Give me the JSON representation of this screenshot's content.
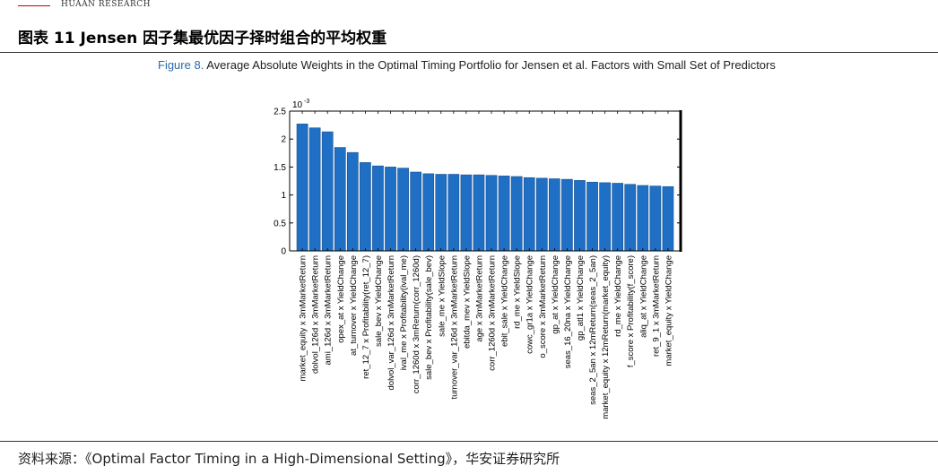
{
  "header": {
    "brand": "HUAAN RESEARCH",
    "figure_title": "图表 11 Jensen 因子集最优因子择时组合的平均权重"
  },
  "caption": {
    "label": "Figure 8.",
    "text": "Average Absolute Weights in the Optimal Timing Portfolio for Jensen et al. Factors with Small Set of Predictors"
  },
  "footer": {
    "source_label": "资料来源：",
    "source_text": "《Optimal Factor Timing in a High-Dimensional Setting》，华安证券研究所"
  },
  "colors": {
    "bar": "#1f6fc5",
    "bar_edge": "#1a4f8f",
    "axis": "#000000",
    "accent_line": "#c00000"
  },
  "chart_data": {
    "type": "bar",
    "title": "",
    "xlabel": "",
    "ylabel": "",
    "y_exponent_label": "10",
    "y_exponent_power": "-3",
    "ylim": [
      0,
      2.5
    ],
    "yticks": [
      0,
      0.5,
      1,
      1.5,
      2,
      2.5
    ],
    "ytick_labels": [
      "0",
      "0.5",
      "1",
      "1.5",
      "2",
      "2.5"
    ],
    "categories": [
      "market_equity x 3mMarketReturn",
      "dolvol_126d x 3mMarketReturn",
      "ami_126d x 3mMarketReturn",
      "opex_at x YieldChange",
      "at_turnover x YieldChange",
      "ret_12_7 x Profitability(ret_12_7)",
      "sale_bev x YieldChange",
      "dolvol_var_126d x 3mMarketReturn",
      "ival_me x Profitability(ival_me)",
      "corr_1260d x 3mReturn(corr_1260d)",
      "sale_bev x Profitability(sale_bev)",
      "sale_me x YieldSlope",
      "turnover_var_126d x 3mMarketReturn",
      "ebitda_mev x YieldSlope",
      "age x 3mMarketReturn",
      "corr_1260d x 3mMarketReturn",
      "ebit_sale x YieldChange",
      "rd_me x YieldSlope",
      "cowc_gr1a x YieldChange",
      "o_score x 3mMarketReturn",
      "gp_at x YieldChange",
      "seas_16_20na x YieldChange",
      "gp_atl1 x YieldChange",
      "seas_2_5an x 12mReturn(seas_2_5an)",
      "market_equity x 12mReturn(market_equity)",
      "rd_me x YieldChange",
      "f_score x Profitability(f_score)",
      "aliq_at x YieldChange",
      "ret_9_1 x 3mMarketReturn",
      "market_equity x YieldChange"
    ],
    "values": [
      2.27,
      2.2,
      2.13,
      1.85,
      1.76,
      1.58,
      1.52,
      1.5,
      1.48,
      1.41,
      1.38,
      1.37,
      1.37,
      1.36,
      1.36,
      1.35,
      1.34,
      1.33,
      1.31,
      1.3,
      1.29,
      1.28,
      1.26,
      1.23,
      1.22,
      1.21,
      1.19,
      1.17,
      1.16,
      1.15
    ],
    "grid": false
  }
}
